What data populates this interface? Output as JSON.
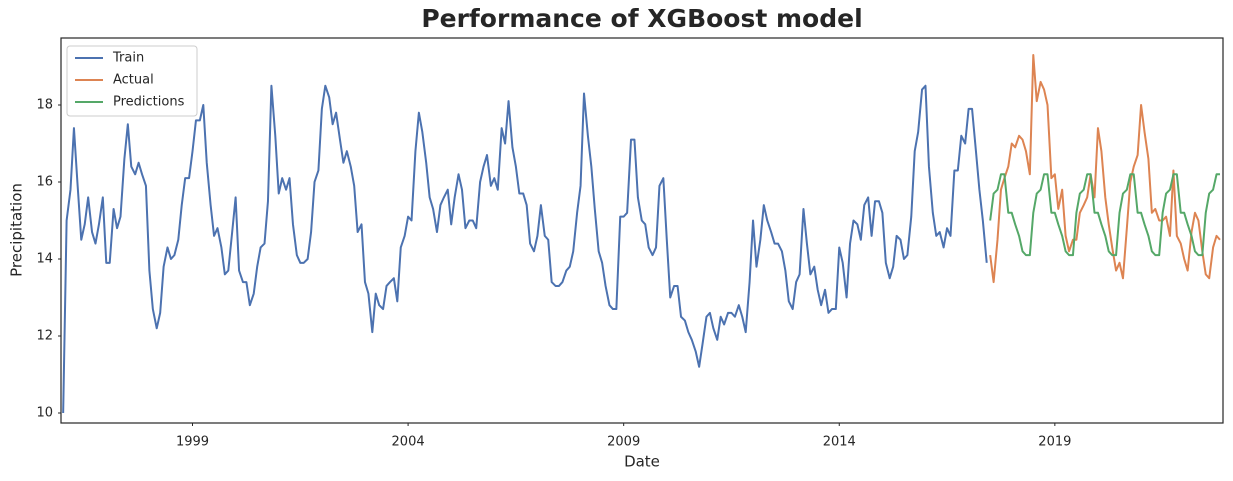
{
  "chart_data": {
    "type": "line",
    "title": "Performance of XGBoost model",
    "x_label": "Date",
    "y_label": "Precipitation",
    "xlim": [
      1995.95,
      2022.9
    ],
    "xticks": [
      1999,
      2004,
      2009,
      2014,
      2019
    ],
    "ylim": [
      9.74,
      19.74
    ],
    "yticks": [
      10,
      12,
      14,
      16,
      18
    ],
    "grid": false,
    "legend": "upper left",
    "series": [
      {
        "name": "Train",
        "color": "#4c72b0",
        "x": [
          1996,
          1996.08,
          1996.17,
          1996.25,
          1996.33,
          1996.42,
          1996.5,
          1996.58,
          1996.67,
          1996.75,
          1996.83,
          1996.92,
          1997,
          1997.08,
          1997.17,
          1997.25,
          1997.33,
          1997.42,
          1997.5,
          1997.58,
          1997.67,
          1997.75,
          1997.83,
          1997.92,
          1998,
          1998.08,
          1998.17,
          1998.25,
          1998.33,
          1998.42,
          1998.5,
          1998.58,
          1998.67,
          1998.75,
          1998.83,
          1998.92,
          1999,
          1999.08,
          1999.17,
          1999.25,
          1999.33,
          1999.42,
          1999.5,
          1999.58,
          1999.67,
          1999.75,
          1999.83,
          1999.92,
          2000,
          2000.08,
          2000.17,
          2000.25,
          2000.33,
          2000.42,
          2000.5,
          2000.58,
          2000.67,
          2000.75,
          2000.83,
          2000.92,
          2001,
          2001.08,
          2001.17,
          2001.25,
          2001.33,
          2001.42,
          2001.5,
          2001.58,
          2001.67,
          2001.75,
          2001.83,
          2001.92,
          2002,
          2002.08,
          2002.17,
          2002.25,
          2002.33,
          2002.42,
          2002.5,
          2002.58,
          2002.67,
          2002.75,
          2002.83,
          2002.92,
          2003,
          2003.08,
          2003.17,
          2003.25,
          2003.33,
          2003.42,
          2003.5,
          2003.58,
          2003.67,
          2003.75,
          2003.83,
          2003.92,
          2004,
          2004.08,
          2004.17,
          2004.25,
          2004.33,
          2004.42,
          2004.5,
          2004.58,
          2004.67,
          2004.75,
          2004.83,
          2004.92,
          2005,
          2005.08,
          2005.17,
          2005.25,
          2005.33,
          2005.42,
          2005.5,
          2005.58,
          2005.67,
          2005.75,
          2005.83,
          2005.92,
          2006,
          2006.08,
          2006.17,
          2006.25,
          2006.33,
          2006.42,
          2006.5,
          2006.58,
          2006.67,
          2006.75,
          2006.83,
          2006.92,
          2007,
          2007.08,
          2007.17,
          2007.25,
          2007.33,
          2007.42,
          2007.5,
          2007.58,
          2007.67,
          2007.75,
          2007.83,
          2007.92,
          2008,
          2008.08,
          2008.17,
          2008.25,
          2008.33,
          2008.42,
          2008.5,
          2008.58,
          2008.67,
          2008.75,
          2008.83,
          2008.92,
          2009,
          2009.08,
          2009.17,
          2009.25,
          2009.33,
          2009.42,
          2009.5,
          2009.58,
          2009.67,
          2009.75,
          2009.83,
          2009.92,
          2010,
          2010.08,
          2010.17,
          2010.25,
          2010.33,
          2010.42,
          2010.5,
          2010.58,
          2010.67,
          2010.75,
          2010.83,
          2010.92,
          2011,
          2011.08,
          2011.17,
          2011.25,
          2011.33,
          2011.42,
          2011.5,
          2011.58,
          2011.67,
          2011.75,
          2011.83,
          2011.92,
          2012,
          2012.08,
          2012.17,
          2012.25,
          2012.33,
          2012.42,
          2012.5,
          2012.58,
          2012.67,
          2012.75,
          2012.83,
          2012.92,
          2013,
          2013.08,
          2013.17,
          2013.25,
          2013.33,
          2013.42,
          2013.5,
          2013.58,
          2013.67,
          2013.75,
          2013.83,
          2013.92,
          2014,
          2014.08,
          2014.17,
          2014.25,
          2014.33,
          2014.42,
          2014.5,
          2014.58,
          2014.67,
          2014.75,
          2014.83,
          2014.92,
          2015,
          2015.08,
          2015.17,
          2015.25,
          2015.33,
          2015.42,
          2015.5,
          2015.58,
          2015.67,
          2015.75,
          2015.83,
          2015.92,
          2016,
          2016.08,
          2016.17,
          2016.25,
          2016.33,
          2016.42,
          2016.5,
          2016.58,
          2016.67,
          2016.75,
          2016.83,
          2016.92,
          2017,
          2017.08,
          2017.17,
          2017.25,
          2017.33,
          2017.42
        ],
        "values": [
          10,
          15.0,
          15.8,
          17.4,
          16.0,
          14.5,
          14.9,
          15.6,
          14.7,
          14.4,
          14.9,
          15.6,
          13.9,
          13.9,
          15.3,
          14.8,
          15.1,
          16.6,
          17.5,
          16.4,
          16.2,
          16.5,
          16.2,
          15.9,
          13.7,
          12.7,
          12.2,
          12.6,
          13.8,
          14.3,
          14.0,
          14.1,
          14.5,
          15.4,
          16.1,
          16.1,
          16.8,
          17.6,
          17.6,
          18.0,
          16.5,
          15.4,
          14.6,
          14.8,
          14.3,
          13.6,
          13.7,
          14.7,
          15.6,
          13.7,
          13.4,
          13.4,
          12.8,
          13.1,
          13.8,
          14.3,
          14.4,
          15.5,
          18.5,
          17.2,
          15.7,
          16.1,
          15.8,
          16.1,
          14.9,
          14.1,
          13.9,
          13.9,
          14.0,
          14.7,
          16.0,
          16.3,
          17.9,
          18.5,
          18.2,
          17.5,
          17.8,
          17.1,
          16.5,
          16.8,
          16.4,
          15.9,
          14.7,
          14.9,
          13.4,
          13.1,
          12.1,
          13.1,
          12.8,
          12.7,
          13.3,
          13.4,
          13.5,
          12.9,
          14.3,
          14.6,
          15.1,
          15.0,
          16.8,
          17.8,
          17.3,
          16.5,
          15.6,
          15.3,
          14.7,
          15.4,
          15.6,
          15.8,
          14.9,
          15.6,
          16.2,
          15.8,
          14.8,
          15.0,
          15.0,
          14.8,
          16.0,
          16.4,
          16.7,
          15.9,
          16.1,
          15.8,
          17.4,
          17.0,
          18.1,
          16.9,
          16.4,
          15.7,
          15.7,
          15.4,
          14.4,
          14.2,
          14.6,
          15.4,
          14.6,
          14.5,
          13.4,
          13.3,
          13.3,
          13.4,
          13.7,
          13.8,
          14.2,
          15.2,
          15.9,
          18.3,
          17.2,
          16.4,
          15.3,
          14.2,
          13.9,
          13.3,
          12.8,
          12.7,
          12.7,
          15.1,
          15.1,
          15.2,
          17.1,
          17.1,
          15.6,
          15.0,
          14.9,
          14.3,
          14.1,
          14.3,
          15.9,
          16.1,
          14.5,
          13.0,
          13.3,
          13.3,
          12.5,
          12.4,
          12.1,
          11.9,
          11.6,
          11.2,
          11.8,
          12.5,
          12.6,
          12.2,
          11.9,
          12.5,
          12.3,
          12.6,
          12.6,
          12.5,
          12.8,
          12.5,
          12.1,
          13.4,
          15.0,
          13.8,
          14.5,
          15.4,
          15.0,
          14.7,
          14.4,
          14.4,
          14.2,
          13.7,
          12.9,
          12.7,
          13.4,
          13.6,
          15.3,
          14.4,
          13.6,
          13.8,
          13.2,
          12.8,
          13.2,
          12.6,
          12.7,
          12.7,
          14.3,
          13.9,
          13.0,
          14.4,
          15.0,
          14.9,
          14.5,
          15.4,
          15.6,
          14.6,
          15.5,
          15.5,
          15.2,
          13.9,
          13.5,
          13.8,
          14.6,
          14.5,
          14.0,
          14.1,
          15.1,
          16.8,
          17.3,
          18.4,
          18.5,
          16.4,
          15.2,
          14.6,
          14.7,
          14.3,
          14.8,
          14.6,
          16.3,
          16.3,
          17.2,
          17.0,
          17.9,
          17.9,
          16.8,
          15.8,
          15.0,
          13.9
        ]
      },
      {
        "name": "Actual",
        "color": "#dd8452",
        "x": [
          2017.5,
          2017.58,
          2017.67,
          2017.75,
          2017.83,
          2017.92,
          2018,
          2018.08,
          2018.17,
          2018.25,
          2018.33,
          2018.42,
          2018.5,
          2018.58,
          2018.67,
          2018.75,
          2018.83,
          2018.92,
          2019,
          2019.08,
          2019.17,
          2019.25,
          2019.33,
          2019.42,
          2019.5,
          2019.58,
          2019.67,
          2019.75,
          2019.83,
          2019.92,
          2020,
          2020.08,
          2020.17,
          2020.25,
          2020.33,
          2020.42,
          2020.5,
          2020.58,
          2020.67,
          2020.75,
          2020.83,
          2020.92,
          2021,
          2021.08,
          2021.17,
          2021.25,
          2021.33,
          2021.42,
          2021.5,
          2021.58,
          2021.67,
          2021.75,
          2021.83,
          2021.92,
          2022,
          2022.08,
          2022.17,
          2022.25,
          2022.33,
          2022.42,
          2022.5,
          2022.58,
          2022.67,
          2022.75,
          2022.83
        ],
        "values": [
          14.1,
          13.4,
          14.5,
          15.8,
          16.1,
          16.4,
          17.0,
          16.9,
          17.2,
          17.1,
          16.8,
          16.2,
          19.3,
          18.1,
          18.6,
          18.4,
          18.0,
          16.1,
          16.2,
          15.3,
          15.8,
          14.6,
          14.2,
          14.5,
          14.5,
          15.2,
          15.4,
          15.6,
          16.2,
          15.6,
          17.4,
          16.8,
          15.6,
          14.9,
          14.3,
          13.7,
          13.9,
          13.5,
          14.8,
          16.0,
          16.4,
          16.7,
          18.0,
          17.3,
          16.6,
          15.2,
          15.3,
          15.0,
          15.0,
          15.1,
          14.6,
          16.3,
          14.6,
          14.4,
          14.0,
          13.7,
          14.7,
          15.2,
          15.0,
          14.2,
          13.6,
          13.5,
          14.3,
          14.6,
          14.5
        ]
      },
      {
        "name": "Predictions",
        "color": "#55a868",
        "x": [
          2017.5,
          2017.58,
          2017.67,
          2017.75,
          2017.83,
          2017.92,
          2018,
          2018.08,
          2018.17,
          2018.25,
          2018.33,
          2018.42,
          2018.5,
          2018.58,
          2018.67,
          2018.75,
          2018.83,
          2018.92,
          2019,
          2019.08,
          2019.17,
          2019.25,
          2019.33,
          2019.42,
          2019.5,
          2019.58,
          2019.67,
          2019.75,
          2019.83,
          2019.92,
          2020,
          2020.08,
          2020.17,
          2020.25,
          2020.33,
          2020.42,
          2020.5,
          2020.58,
          2020.67,
          2020.75,
          2020.83,
          2020.92,
          2021,
          2021.08,
          2021.17,
          2021.25,
          2021.33,
          2021.42,
          2021.5,
          2021.58,
          2021.67,
          2021.75,
          2021.83,
          2021.92,
          2022,
          2022.08,
          2022.17,
          2022.25,
          2022.33,
          2022.42,
          2022.5,
          2022.58,
          2022.67,
          2022.75,
          2022.83
        ],
        "values": [
          15.0,
          15.7,
          15.8,
          16.2,
          16.2,
          15.2,
          15.2,
          14.9,
          14.6,
          14.2,
          14.1,
          14.1,
          15.2,
          15.7,
          15.8,
          16.2,
          16.2,
          15.2,
          15.2,
          14.9,
          14.6,
          14.2,
          14.1,
          14.1,
          15.2,
          15.7,
          15.8,
          16.2,
          16.2,
          15.2,
          15.2,
          14.9,
          14.6,
          14.2,
          14.1,
          14.1,
          15.2,
          15.7,
          15.8,
          16.2,
          16.2,
          15.2,
          15.2,
          14.9,
          14.6,
          14.2,
          14.1,
          14.1,
          15.2,
          15.7,
          15.8,
          16.2,
          16.2,
          15.2,
          15.2,
          14.9,
          14.6,
          14.2,
          14.1,
          14.1,
          15.2,
          15.7,
          15.8,
          16.2,
          16.2
        ]
      }
    ]
  }
}
